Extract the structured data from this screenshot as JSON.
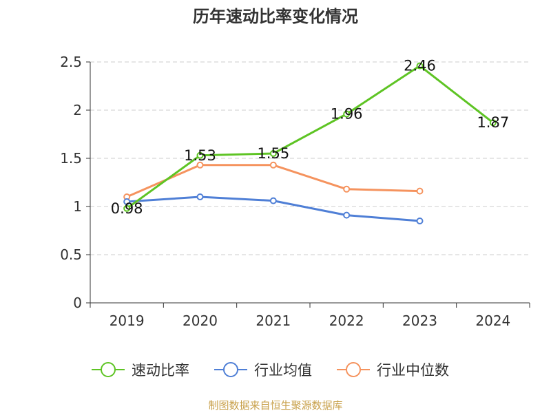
{
  "chart_data": {
    "type": "line",
    "title": "历年速动比率变化情况",
    "categories": [
      "2019",
      "2020",
      "2021",
      "2022",
      "2023",
      "2024"
    ],
    "series": [
      {
        "name": "速动比率",
        "values": [
          0.98,
          1.53,
          1.55,
          1.96,
          2.46,
          1.87
        ],
        "color": "#5ec424",
        "show_labels": true
      },
      {
        "name": "行业均值",
        "values": [
          1.05,
          1.1,
          1.06,
          0.91,
          0.85,
          null
        ],
        "color": "#4f7fd6",
        "show_labels": false
      },
      {
        "name": "行业中位数",
        "values": [
          1.1,
          1.43,
          1.43,
          1.18,
          1.16,
          null
        ],
        "color": "#f5935e",
        "show_labels": false
      }
    ],
    "yticks": [
      "0",
      "0.5",
      "1",
      "1.5",
      "2",
      "2.5"
    ],
    "ylim": [
      0,
      2.5
    ],
    "grid": "dashed-horizontal",
    "legend_position": "bottom",
    "source": "制图数据来自恒生聚源数据库"
  }
}
